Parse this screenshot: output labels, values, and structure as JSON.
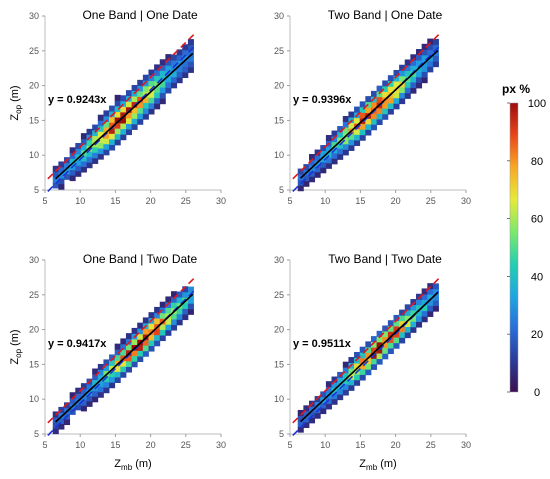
{
  "chart_data": [
    {
      "type": "heatmap",
      "title": "One Band | One Date",
      "equation": "y = 0.9243x",
      "slope": 0.9243,
      "xlabel": "",
      "ylabel": "Z_op (m)",
      "xlim": [
        5,
        30
      ],
      "ylim": [
        5,
        30
      ],
      "x_ticks": [
        "5",
        "10",
        "15",
        "20",
        "25",
        "30"
      ],
      "y_ticks": [
        "5",
        "10",
        "15",
        "20",
        "25",
        "30"
      ],
      "spread": 1.7,
      "density_peak_x": 16
    },
    {
      "type": "heatmap",
      "title": "Two Band | One Date",
      "equation": "y = 0.9396x",
      "slope": 0.9396,
      "xlabel": "",
      "ylabel": "",
      "xlim": [
        5,
        30
      ],
      "ylim": [
        5,
        30
      ],
      "x_ticks": [
        "5",
        "10",
        "15",
        "20",
        "25",
        "30"
      ],
      "y_ticks": [
        "5",
        "10",
        "15",
        "20",
        "25",
        "30"
      ],
      "spread": 1.5,
      "density_peak_x": 17
    },
    {
      "type": "heatmap",
      "title": "One Band | Two Date",
      "equation": "y = 0.9417x",
      "slope": 0.9417,
      "xlabel": "Z_mb (m)",
      "ylabel": "Z_op (m)",
      "xlim": [
        5,
        30
      ],
      "ylim": [
        5,
        30
      ],
      "x_ticks": [
        "5",
        "10",
        "15",
        "20",
        "25",
        "30"
      ],
      "y_ticks": [
        "5",
        "10",
        "15",
        "20",
        "25",
        "30"
      ],
      "spread": 1.4,
      "density_peak_x": 19
    },
    {
      "type": "heatmap",
      "title": "Two Band | Two Date",
      "equation": "y = 0.9511x",
      "slope": 0.9511,
      "xlabel": "Z_mb (m)",
      "ylabel": "",
      "xlim": [
        5,
        30
      ],
      "ylim": [
        5,
        30
      ],
      "x_ticks": [
        "5",
        "10",
        "15",
        "20",
        "25",
        "30"
      ],
      "y_ticks": [
        "5",
        "10",
        "15",
        "20",
        "25",
        "30"
      ],
      "spread": 1.3,
      "density_peak_x": 18
    }
  ],
  "colorbar": {
    "label": "px %",
    "ticks": [
      "0",
      "20",
      "40",
      "60",
      "80",
      "100"
    ],
    "range": [
      0,
      100
    ],
    "colormap": [
      "#3b0f4f",
      "#2a3c9a",
      "#2a6ed8",
      "#1fa6e0",
      "#25cfb0",
      "#7fe86b",
      "#e6ea3a",
      "#f7a825",
      "#e8461b",
      "#9c0d0d"
    ]
  },
  "line_colors": {
    "fit": "#000000",
    "upper_bound": "#e0181c",
    "lower_bound": "#1b33d6"
  }
}
